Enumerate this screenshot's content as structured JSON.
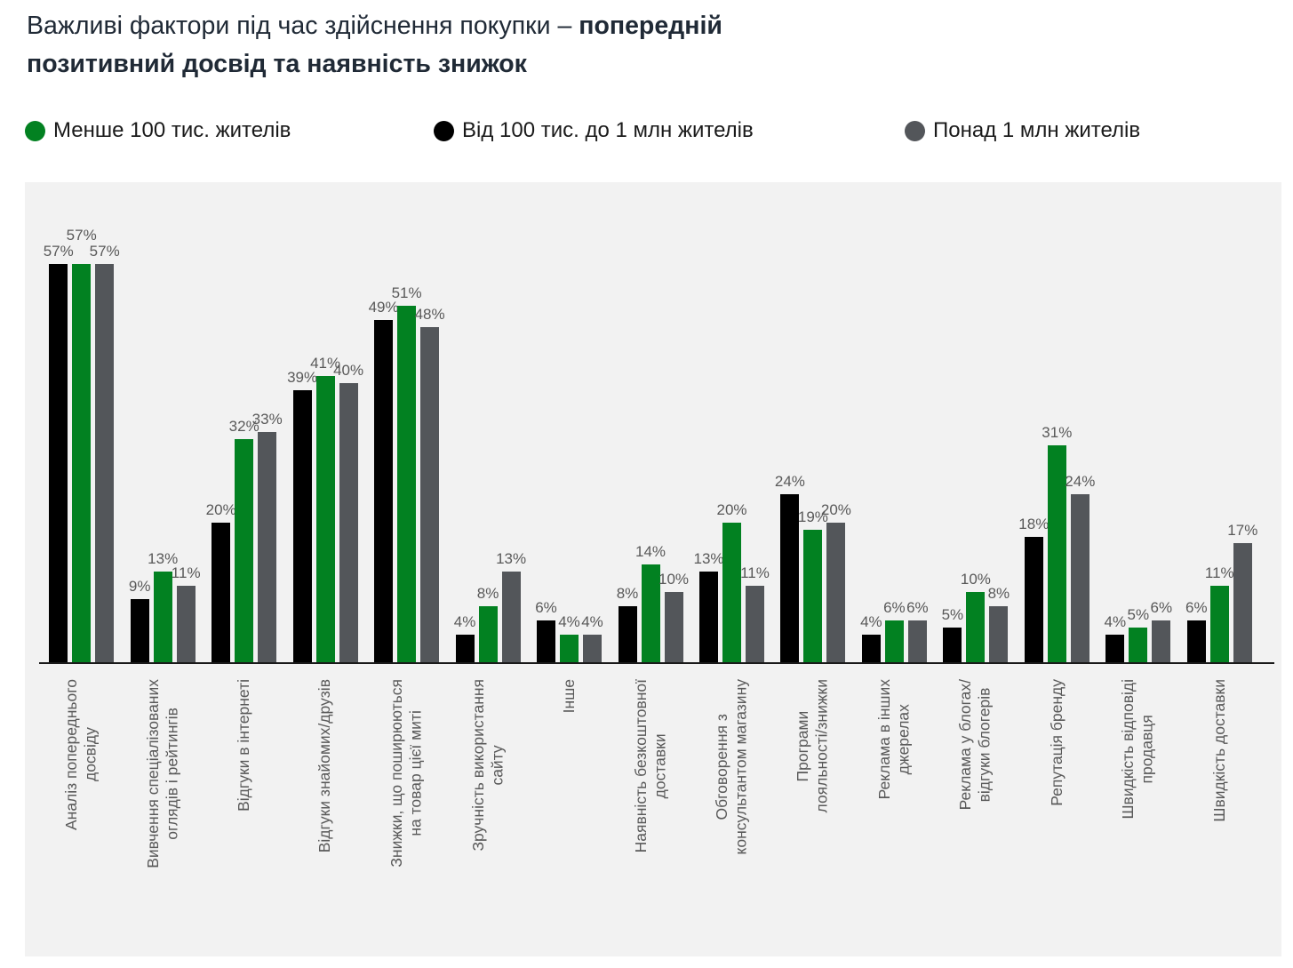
{
  "title": {
    "line1_regular": "Важливі фактори під час здійснення покупки – ",
    "line1_bold": "попередній",
    "line2_bold": "позитивний досвід та наявність знижок"
  },
  "legend": {
    "items": [
      {
        "label": "Менше 100 тис. жителів",
        "color": "#028121"
      },
      {
        "label": "Від 100 тис. до 1 млн жителів",
        "color": "#000000"
      },
      {
        "label": "Понад 1 млн жителів",
        "color": "#53565A"
      }
    ]
  },
  "chart_data": {
    "type": "bar",
    "title": "Важливі фактори під час здійснення покупки – попередній позитивний досвід та наявність знижок",
    "value_suffix": "%",
    "data_labels": true,
    "grid": false,
    "y_axis_visible": false,
    "legend_position": "top",
    "bar_display_order_note": "bars within each group left-to-right: Від 100 тис. до 1 млн (black), Менше 100 тис. (green), Понад 1 млн (gray)",
    "categories": [
      [
        "Аналіз попереднього",
        "досвіду"
      ],
      [
        "Вивчення спеціалізованих",
        "оглядів і рейтингів"
      ],
      [
        "Відгуки в інтернеті"
      ],
      [
        "Відгуки знайомих/друзів"
      ],
      [
        "Знижки, що поширюються",
        "на товар цієї миті"
      ],
      [
        "Зручність використання",
        "сайту"
      ],
      [
        "Інше"
      ],
      [
        "Наявність безкоштовної",
        "доставки"
      ],
      [
        "Обговорення з",
        "консультантом магазину"
      ],
      [
        "Програми",
        "лояльності/знижки"
      ],
      [
        "Реклама в інших",
        "джерелах"
      ],
      [
        "Реклама у блогах/",
        "відгуки блогерів"
      ],
      [
        "Репутація бренду"
      ],
      [
        "Швидкість відповіді",
        "продавця"
      ],
      [
        "Швидкість доставки"
      ]
    ],
    "series": [
      {
        "name": "Від 100 тис. до 1 млн жителів",
        "color": "#000000",
        "values": [
          57,
          9,
          20,
          39,
          49,
          4,
          6,
          8,
          13,
          24,
          4,
          5,
          18,
          4,
          6
        ]
      },
      {
        "name": "Менше 100 тис. жителів",
        "color": "#028121",
        "values": [
          57,
          13,
          32,
          41,
          51,
          8,
          4,
          14,
          20,
          19,
          6,
          10,
          31,
          5,
          11
        ]
      },
      {
        "name": "Понад 1 млн жителів",
        "color": "#53565A",
        "values": [
          57,
          11,
          33,
          40,
          48,
          13,
          4,
          10,
          11,
          20,
          6,
          8,
          24,
          6,
          17
        ]
      }
    ]
  }
}
